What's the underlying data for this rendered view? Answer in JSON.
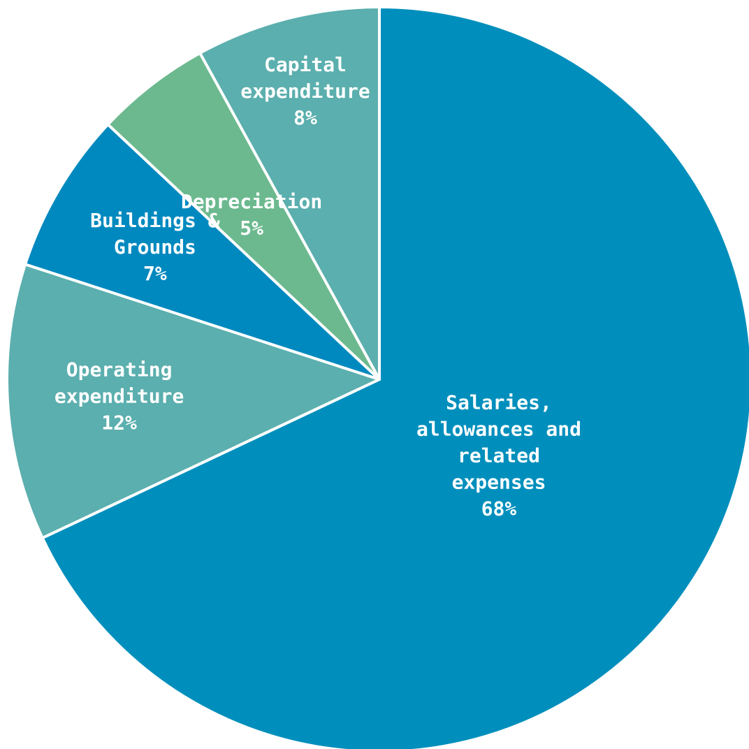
{
  "chart_data": {
    "type": "pie",
    "title": "",
    "start_angle_deg": 0,
    "direction": "clockwise",
    "legend": "none",
    "slices": [
      {
        "label_lines": [
          "Salaries,",
          "allowances and",
          "related",
          "expenses"
        ],
        "pct_label": "68%",
        "value": 68,
        "color": "#008FBC"
      },
      {
        "label_lines": [
          "Operating",
          "expenditure"
        ],
        "pct_label": "12%",
        "value": 12,
        "color": "#5BAFAE"
      },
      {
        "label_lines": [
          "Buildings &",
          "Grounds"
        ],
        "pct_label": "7%",
        "value": 7,
        "color": "#0089BF"
      },
      {
        "label_lines": [
          "Depreciation"
        ],
        "pct_label": "5%",
        "value": 5,
        "color": "#6CB98F"
      },
      {
        "label_lines": [
          "Capital",
          "expenditure"
        ],
        "pct_label": "8%",
        "value": 8,
        "color": "#5BAFAE"
      }
    ]
  }
}
